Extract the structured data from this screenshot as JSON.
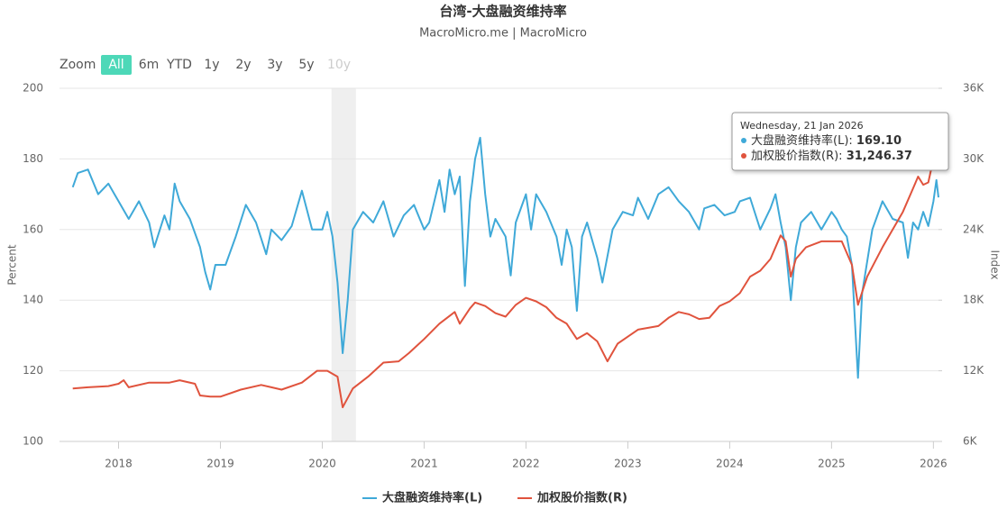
{
  "chart_data": {
    "type": "line",
    "title": "台湾-大盘融资维持率",
    "subtitle": "MacroMicro.me | MacroMicro",
    "range_selector": {
      "label": "Zoom",
      "buttons": [
        {
          "label": "All",
          "state": "selected"
        },
        {
          "label": "6m",
          "state": "normal"
        },
        {
          "label": "YTD",
          "state": "normal"
        },
        {
          "label": "1y",
          "state": "normal"
        },
        {
          "label": "2y",
          "state": "normal"
        },
        {
          "label": "3y",
          "state": "normal"
        },
        {
          "label": "5y",
          "state": "normal"
        },
        {
          "label": "10y",
          "state": "disabled"
        }
      ]
    },
    "y_label": "Percent",
    "y2_label": "Index",
    "xlim": [
      2017.42,
      2026.05
    ],
    "xticks": [
      2018,
      2019,
      2020,
      2021,
      2022,
      2023,
      2024,
      2025,
      2026
    ],
    "ylim": [
      100,
      200
    ],
    "yticks": [
      100,
      120,
      140,
      160,
      180,
      200
    ],
    "y2lim": [
      6000,
      36000
    ],
    "y2ticks": [
      {
        "value": 6000,
        "label": "6K"
      },
      {
        "value": 12000,
        "label": "12K"
      },
      {
        "value": 18000,
        "label": "18K"
      },
      {
        "value": 24000,
        "label": "24K"
      },
      {
        "value": 30000,
        "label": "30K"
      },
      {
        "value": 36000,
        "label": "36K"
      }
    ],
    "grid": true,
    "shaded_range": [
      2020.09,
      2020.33
    ],
    "series": [
      {
        "name": "大盘融资维持率(L)",
        "color": "#3fa9d8",
        "axis": "y",
        "x": [
          2017.55,
          2017.6,
          2017.7,
          2017.8,
          2017.9,
          2018.0,
          2018.1,
          2018.2,
          2018.3,
          2018.35,
          2018.45,
          2018.5,
          2018.55,
          2018.6,
          2018.7,
          2018.8,
          2018.85,
          2018.9,
          2018.95,
          2019.05,
          2019.15,
          2019.25,
          2019.35,
          2019.45,
          2019.5,
          2019.6,
          2019.7,
          2019.8,
          2019.9,
          2020.0,
          2020.05,
          2020.1,
          2020.15,
          2020.2,
          2020.25,
          2020.3,
          2020.4,
          2020.5,
          2020.6,
          2020.7,
          2020.8,
          2020.9,
          2021.0,
          2021.05,
          2021.1,
          2021.15,
          2021.2,
          2021.25,
          2021.3,
          2021.35,
          2021.4,
          2021.45,
          2021.5,
          2021.55,
          2021.6,
          2021.65,
          2021.7,
          2021.8,
          2021.85,
          2021.9,
          2022.0,
          2022.05,
          2022.1,
          2022.2,
          2022.3,
          2022.35,
          2022.4,
          2022.45,
          2022.5,
          2022.55,
          2022.6,
          2022.7,
          2022.75,
          2022.85,
          2022.95,
          2023.05,
          2023.1,
          2023.2,
          2023.3,
          2023.4,
          2023.5,
          2023.6,
          2023.7,
          2023.75,
          2023.85,
          2023.95,
          2024.05,
          2024.1,
          2024.2,
          2024.3,
          2024.4,
          2024.45,
          2024.5,
          2024.55,
          2024.6,
          2024.65,
          2024.7,
          2024.8,
          2024.9,
          2025.0,
          2025.05,
          2025.1,
          2025.15,
          2025.2,
          2025.26,
          2025.3,
          2025.4,
          2025.5,
          2025.6,
          2025.7,
          2025.75,
          2025.8,
          2025.85,
          2025.9,
          2025.95,
          2026.0,
          2026.03,
          2026.05
        ],
        "values": [
          172,
          176,
          177,
          170,
          173,
          168,
          163,
          168,
          162,
          155,
          164,
          160,
          173,
          168,
          163,
          155,
          148,
          143,
          150,
          150,
          158,
          167,
          162,
          153,
          160,
          157,
          161,
          171,
          160,
          160,
          165,
          158,
          145,
          125,
          140,
          160,
          165,
          162,
          168,
          158,
          164,
          167,
          160,
          162,
          168,
          174,
          165,
          177,
          170,
          175,
          144,
          168,
          180,
          186,
          170,
          158,
          163,
          158,
          147,
          162,
          170,
          160,
          170,
          165,
          158,
          150,
          160,
          155,
          137,
          158,
          162,
          152,
          145,
          160,
          165,
          164,
          169,
          163,
          170,
          172,
          168,
          165,
          160,
          166,
          167,
          164,
          165,
          168,
          169,
          160,
          166,
          170,
          162,
          155,
          140,
          155,
          162,
          165,
          160,
          165,
          163,
          160,
          158,
          150,
          118,
          142,
          160,
          168,
          163,
          162,
          152,
          162,
          160,
          165,
          161,
          168,
          174,
          169.1
        ]
      },
      {
        "name": "加权股价指数(R)",
        "color": "#e0533d",
        "axis": "y2",
        "x": [
          2017.55,
          2017.7,
          2017.9,
          2018.0,
          2018.05,
          2018.1,
          2018.3,
          2018.5,
          2018.6,
          2018.75,
          2018.8,
          2018.9,
          2019.0,
          2019.2,
          2019.4,
          2019.5,
          2019.6,
          2019.8,
          2019.95,
          2020.05,
          2020.15,
          2020.2,
          2020.3,
          2020.45,
          2020.6,
          2020.75,
          2020.85,
          2021.0,
          2021.15,
          2021.3,
          2021.35,
          2021.45,
          2021.5,
          2021.6,
          2021.7,
          2021.8,
          2021.9,
          2022.0,
          2022.1,
          2022.2,
          2022.3,
          2022.4,
          2022.5,
          2022.6,
          2022.7,
          2022.8,
          2022.9,
          2023.0,
          2023.1,
          2023.3,
          2023.4,
          2023.5,
          2023.6,
          2023.7,
          2023.8,
          2023.9,
          2024.0,
          2024.1,
          2024.2,
          2024.3,
          2024.4,
          2024.5,
          2024.55,
          2024.6,
          2024.65,
          2024.75,
          2024.9,
          2025.0,
          2025.1,
          2025.2,
          2025.26,
          2025.35,
          2025.5,
          2025.6,
          2025.7,
          2025.8,
          2025.85,
          2025.9,
          2025.95,
          2026.0,
          2026.05
        ],
        "values": [
          10500,
          10600,
          10700,
          10900,
          11200,
          10600,
          11000,
          11000,
          11200,
          10900,
          9900,
          9800,
          9800,
          10400,
          10800,
          10600,
          10400,
          11000,
          12000,
          12000,
          11500,
          8900,
          10500,
          11500,
          12700,
          12800,
          13500,
          14700,
          16000,
          17000,
          16000,
          17300,
          17800,
          17500,
          16900,
          16600,
          17600,
          18200,
          17900,
          17400,
          16500,
          16000,
          14700,
          15200,
          14500,
          12800,
          14300,
          14900,
          15500,
          15800,
          16500,
          17000,
          16800,
          16400,
          16500,
          17500,
          17900,
          18600,
          20000,
          20500,
          21500,
          23500,
          23000,
          20000,
          21500,
          22500,
          23000,
          23000,
          23000,
          21000,
          17600,
          20000,
          22500,
          24000,
          25500,
          27500,
          28500,
          27800,
          28000,
          30000,
          31246.37
        ]
      }
    ],
    "tooltip": {
      "date": "Wednesday, 21 Jan 2026",
      "items": [
        {
          "label": "大盘融资维持率(L): ",
          "value": 169.1,
          "value_label": "169.10"
        },
        {
          "label": "加权股价指数(R): ",
          "value": 31246.37,
          "value_label": "31,246.37"
        }
      ]
    }
  }
}
